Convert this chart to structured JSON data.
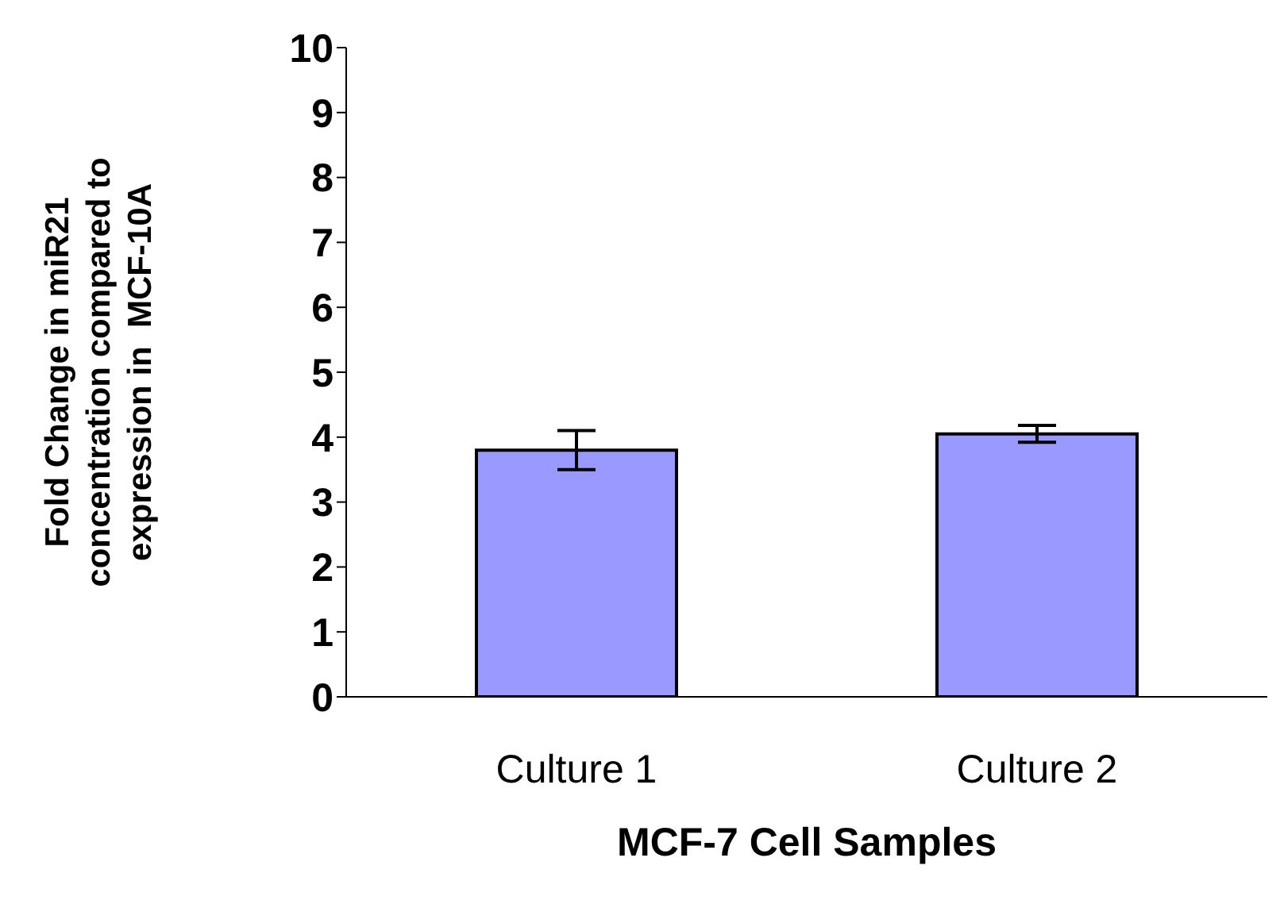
{
  "chart_data": {
    "type": "bar",
    "xlabel": "MCF-7 Cell Samples",
    "ylabel": "Fold Change in miR21\nconcentration compared to\nexpression in  MCF-10A",
    "categories": [
      "Culture 1",
      "Culture 2"
    ],
    "values": [
      3.8,
      4.05
    ],
    "errors": [
      0.3,
      0.13
    ],
    "color": "#9999ff",
    "ylim": [
      0,
      10
    ],
    "yticks": [
      0,
      1,
      2,
      3,
      4,
      5,
      6,
      7,
      8,
      9,
      10
    ],
    "grid": false,
    "legend": false
  }
}
